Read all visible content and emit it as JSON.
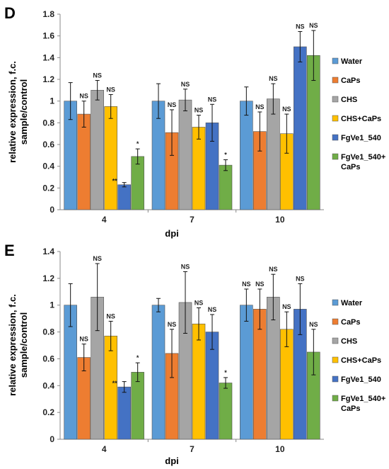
{
  "series_colors": [
    "#5b9bd5",
    "#ed7d31",
    "#a5a5a5",
    "#ffc000",
    "#4472c4",
    "#70ad47"
  ],
  "chart_data": [
    {
      "panel": "D",
      "type": "bar",
      "categories": [
        "4",
        "7",
        "10"
      ],
      "xlabel": "dpi",
      "ylabel_lines": [
        "relative expression, f.c.",
        "sample/control"
      ],
      "ylim": [
        0,
        1.8
      ],
      "yticks": [
        "0",
        "0.2",
        "0.4",
        "0.6",
        "0.8",
        "1",
        "1.2",
        "1.4",
        "1.6",
        "1.8"
      ],
      "legend_position": "right",
      "grid": false,
      "series": [
        {
          "name": "Water",
          "values": [
            1.0,
            1.0,
            1.0
          ],
          "errors": [
            0.17,
            0.16,
            0.13
          ],
          "annotations": [
            "",
            "",
            ""
          ]
        },
        {
          "name": "CaPs",
          "values": [
            0.88,
            0.71,
            0.72
          ],
          "errors": [
            0.12,
            0.21,
            0.18
          ],
          "annotations": [
            "NS",
            "NS",
            "NS"
          ]
        },
        {
          "name": "CHS",
          "values": [
            1.1,
            1.01,
            1.02
          ],
          "errors": [
            0.09,
            0.1,
            0.14
          ],
          "annotations": [
            "NS",
            "NS",
            "NS"
          ]
        },
        {
          "name": "CHS+CaPs",
          "values": [
            0.95,
            0.76,
            0.7
          ],
          "errors": [
            0.11,
            0.11,
            0.18
          ],
          "annotations": [
            "NS",
            "NS",
            "NS"
          ]
        },
        {
          "name": "FgVe1_540",
          "values": [
            0.23,
            0.8,
            1.5
          ],
          "errors": [
            0.02,
            0.17,
            0.14
          ],
          "annotations": [
            "**",
            "NS",
            "NS"
          ]
        },
        {
          "name": "FgVe1_540+ CaPs",
          "legend_lines": [
            "FgVe1_540+",
            "CaPs"
          ],
          "values": [
            0.49,
            0.41,
            1.42
          ],
          "errors": [
            0.07,
            0.05,
            0.23
          ],
          "annotations": [
            "*",
            "*",
            "NS"
          ]
        }
      ]
    },
    {
      "panel": "E",
      "type": "bar",
      "categories": [
        "4",
        "7",
        "10"
      ],
      "xlabel": "dpi",
      "ylabel_lines": [
        "relative expression, f.c.",
        "sample/control"
      ],
      "ylim": [
        0,
        1.4
      ],
      "yticks": [
        "0",
        "0.2",
        "0.4",
        "0.6",
        "0.8",
        "1",
        "1.2",
        "1.4"
      ],
      "legend_position": "right",
      "grid": false,
      "series": [
        {
          "name": "Water",
          "values": [
            1.0,
            1.0,
            1.0
          ],
          "errors": [
            0.16,
            0.05,
            0.12
          ],
          "annotations": [
            "",
            "",
            "NS"
          ]
        },
        {
          "name": "CaPs",
          "values": [
            0.61,
            0.64,
            0.97
          ],
          "errors": [
            0.1,
            0.18,
            0.15
          ],
          "annotations": [
            "NS",
            "NS",
            "NS"
          ]
        },
        {
          "name": "CHS",
          "values": [
            1.06,
            1.02,
            1.06
          ],
          "errors": [
            0.25,
            0.23,
            0.17
          ],
          "annotations": [
            "NS",
            "NS",
            "NS"
          ]
        },
        {
          "name": "CHS+CaPs",
          "values": [
            0.77,
            0.86,
            0.82
          ],
          "errors": [
            0.11,
            0.12,
            0.13
          ],
          "annotations": [
            "NS",
            "NS",
            "NS"
          ]
        },
        {
          "name": "FgVe1_540",
          "values": [
            0.39,
            0.8,
            0.97
          ],
          "errors": [
            0.04,
            0.13,
            0.19
          ],
          "annotations": [
            "**",
            "NS",
            "NS"
          ]
        },
        {
          "name": "FgVe1_540+ CaPs",
          "legend_lines": [
            "FgVe1_540+",
            "CaPs"
          ],
          "values": [
            0.5,
            0.42,
            0.65
          ],
          "errors": [
            0.07,
            0.04,
            0.17
          ],
          "annotations": [
            "*",
            "*",
            "NS"
          ]
        }
      ]
    }
  ]
}
